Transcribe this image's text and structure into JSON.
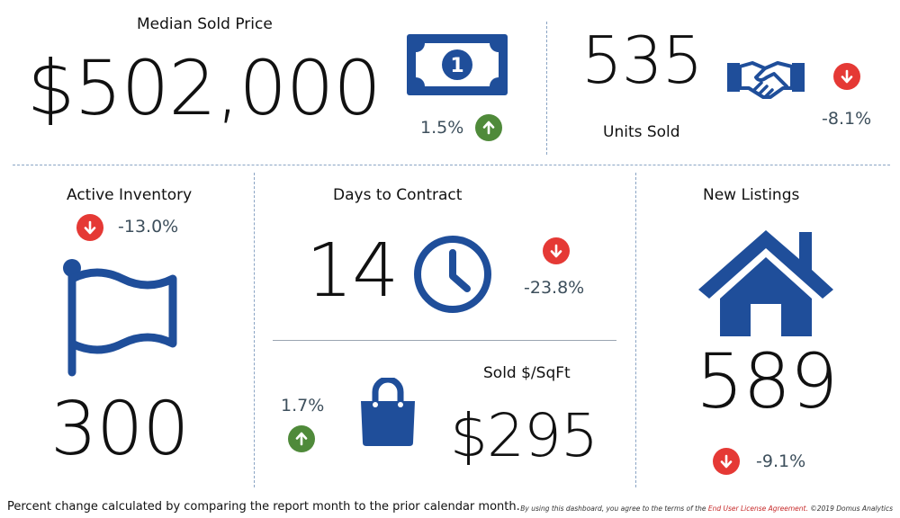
{
  "colors": {
    "accent_blue": "#1f4e9a",
    "up_green": "#4f8a3a",
    "down_red": "#e53935",
    "divider": "#8aa4c4",
    "pct_text": "#3d4f5c"
  },
  "median_sold_price": {
    "label": "Median Sold Price",
    "value": "$502,000",
    "change": "1.5%",
    "direction": "up",
    "icon": "dollar-bill-icon"
  },
  "units_sold": {
    "label": "Units Sold",
    "value": "535",
    "change": "-8.1%",
    "direction": "down",
    "icon": "handshake-icon"
  },
  "active_inventory": {
    "label": "Active Inventory",
    "value": "300",
    "change": "-13.0%",
    "direction": "down",
    "icon": "flag-icon"
  },
  "days_to_contract": {
    "label": "Days to Contract",
    "value": "14",
    "change": "-23.8%",
    "direction": "down",
    "icon": "clock-icon"
  },
  "sold_per_sqft": {
    "label": "Sold $/SqFt",
    "value": "$295",
    "change": "1.7%",
    "direction": "up",
    "icon": "shopping-bag-icon"
  },
  "new_listings": {
    "label": "New Listings",
    "value": "589",
    "change": "-9.1%",
    "direction": "down",
    "icon": "house-icon"
  },
  "footer": {
    "note": "Percent change calculated by comparing the report month to the prior calendar month.",
    "terms_prefix": "By using this dashboard, you agree to the terms of the",
    "terms_link": "End User License Agreement.",
    "copyright": "©2019 Domus Analytics"
  }
}
